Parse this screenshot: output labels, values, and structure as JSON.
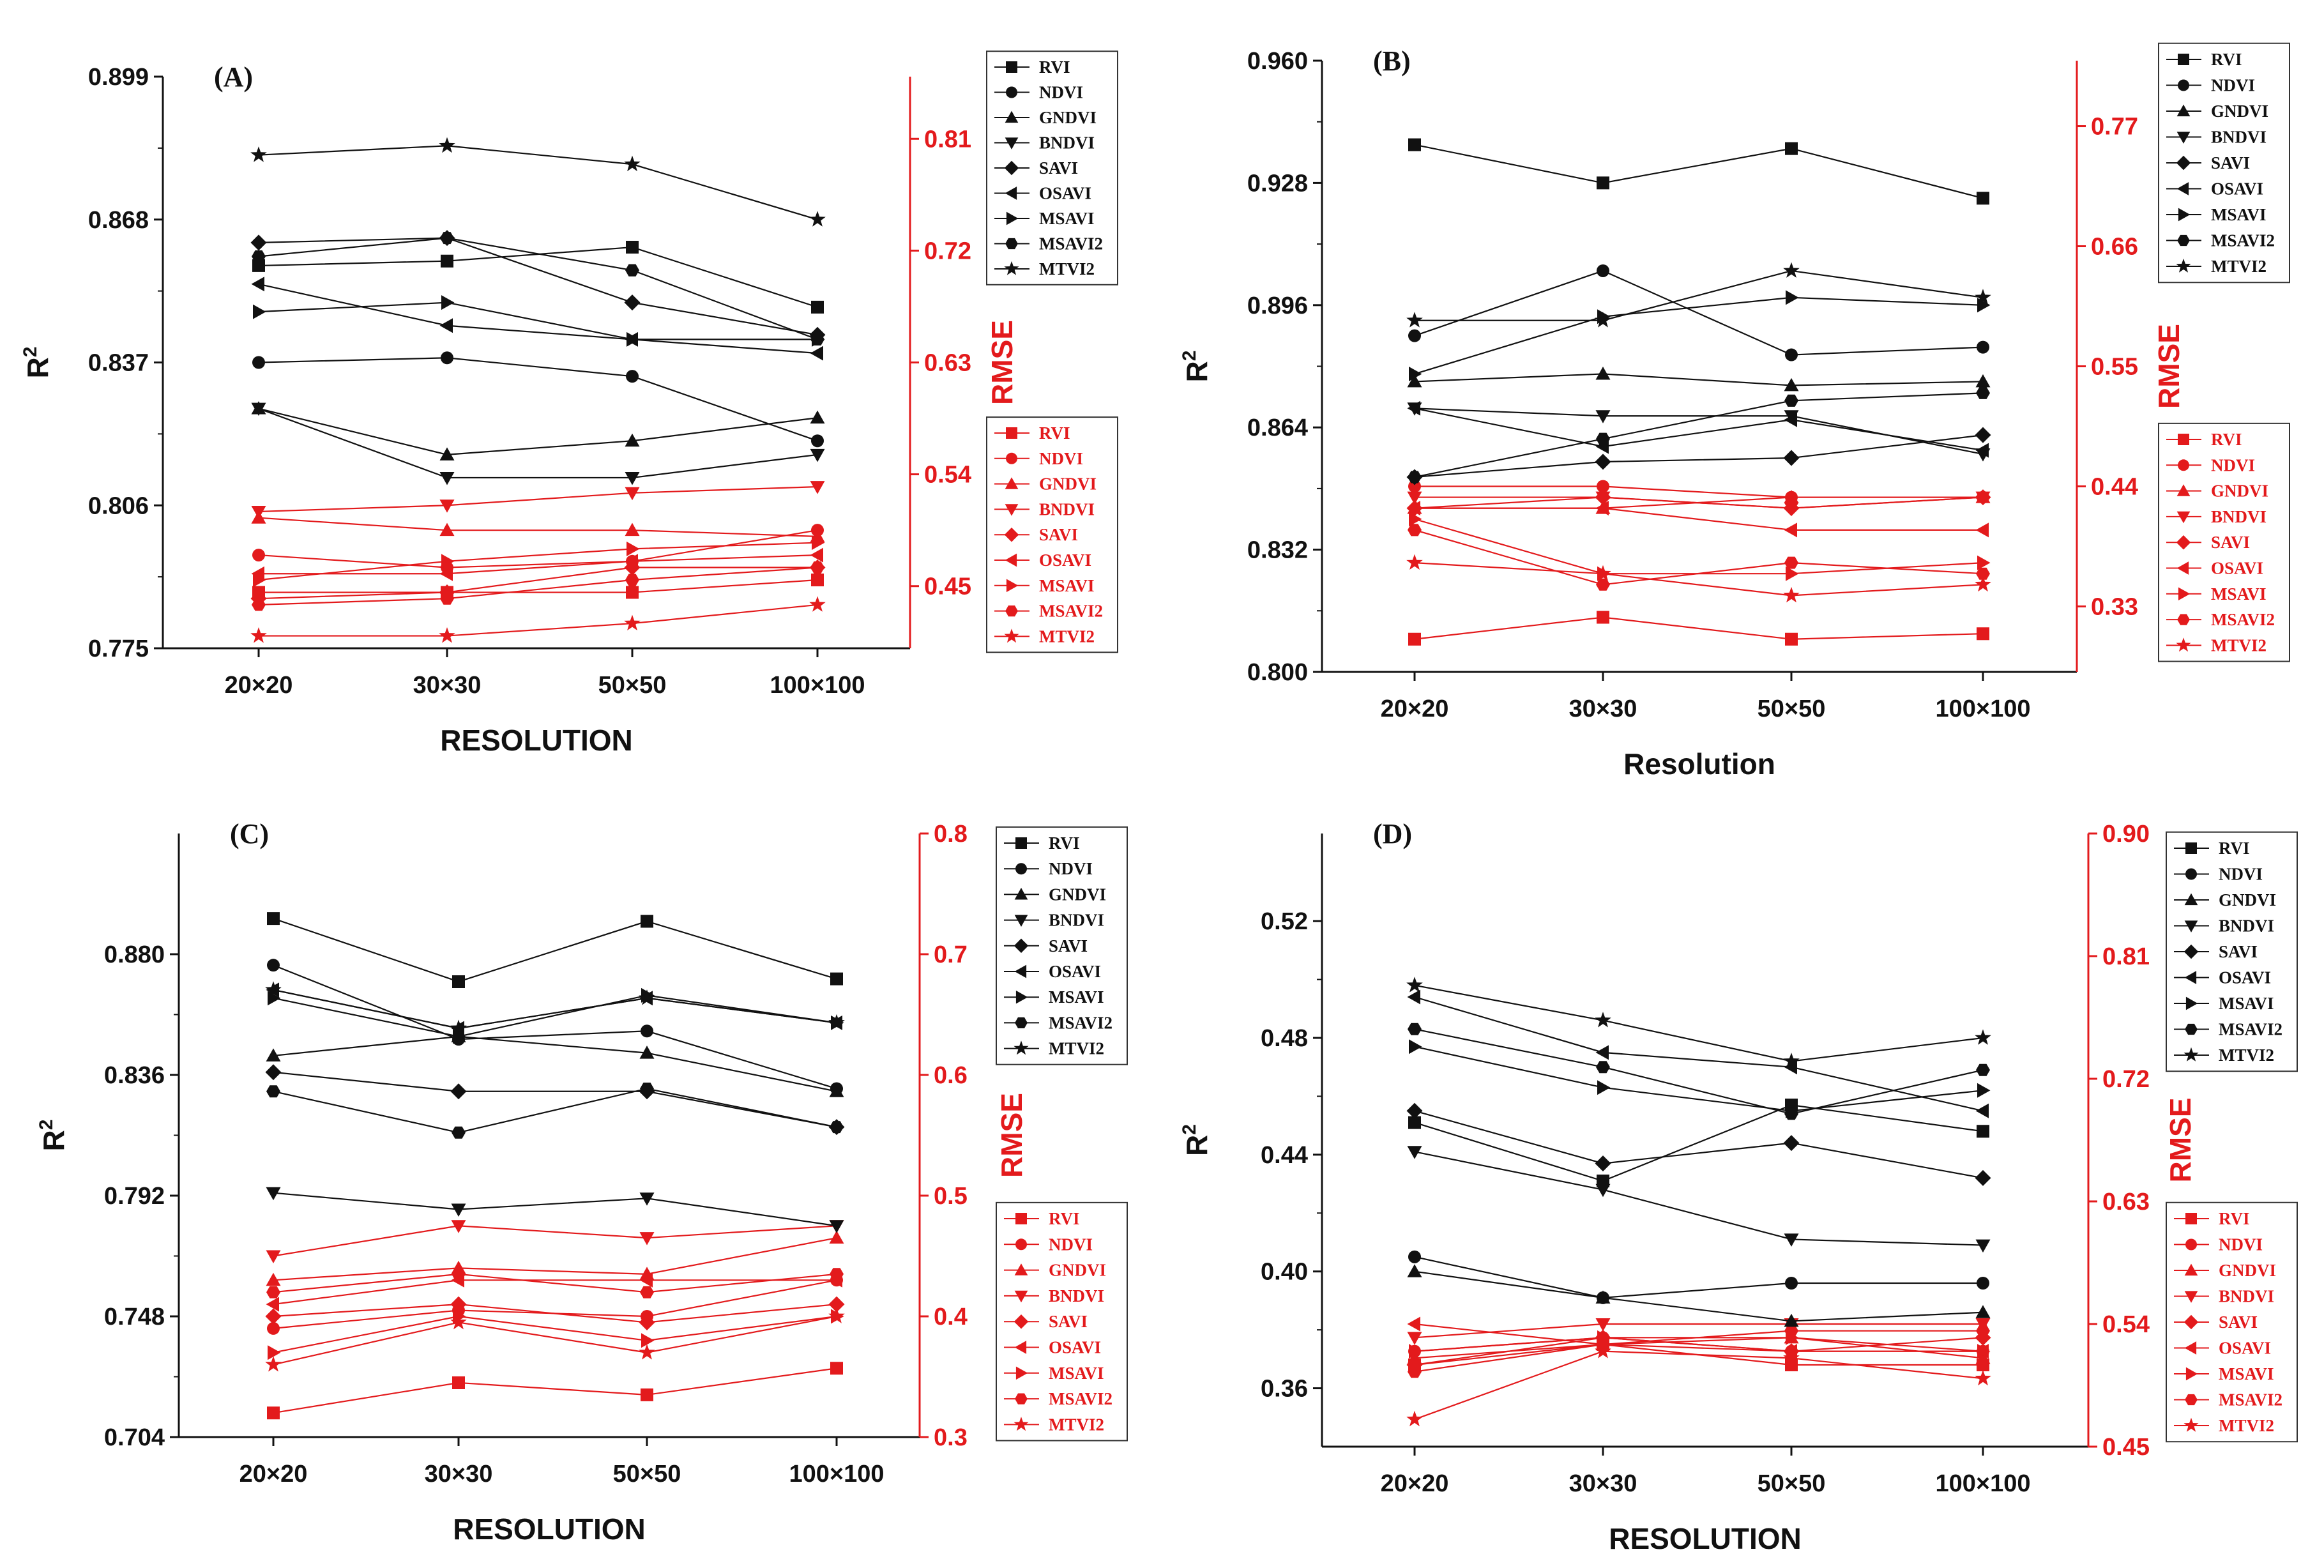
{
  "colors": {
    "r2": "#111111",
    "rmse": "#e31a1c"
  },
  "legend_labels": [
    "RVI",
    "NDVI",
    "GNDVI",
    "BNDVI",
    "SAVI",
    "OSAVI",
    "MSAVI",
    "MSAVI2",
    "MTVI2"
  ],
  "markers": [
    "square",
    "circle",
    "triangle-up",
    "triangle-down",
    "diamond",
    "triangle-left",
    "triangle-right",
    "hexagon",
    "star"
  ],
  "chart_data": [
    {
      "type": "line",
      "panel": "(A)",
      "categories": [
        "20×20",
        "30×30",
        "50×50",
        "100×100"
      ],
      "xlabel": "RESOLUTION",
      "ylabel_left": "R",
      "ylabel_left_sup": "2",
      "ylabel_right": "RMSE",
      "ylim_left": [
        0.775,
        0.899
      ],
      "ylim_right": [
        0.4,
        0.86
      ],
      "yticks_left": [
        "0.775",
        "0.806",
        "0.837",
        "0.868",
        "0.899"
      ],
      "yticks_right": [
        "0.45",
        "0.54",
        "0.63",
        "0.72",
        "0.81"
      ],
      "series_r2": [
        {
          "name": "RVI",
          "values": [
            0.858,
            0.859,
            0.862,
            0.849
          ]
        },
        {
          "name": "NDVI",
          "values": [
            0.837,
            0.838,
            0.834,
            0.82
          ]
        },
        {
          "name": "GNDVI",
          "values": [
            0.827,
            0.817,
            0.82,
            0.825
          ]
        },
        {
          "name": "BNDVI",
          "values": [
            0.827,
            0.812,
            0.812,
            0.817
          ]
        },
        {
          "name": "SAVI",
          "values": [
            0.863,
            0.864,
            0.85,
            0.843
          ]
        },
        {
          "name": "OSAVI",
          "values": [
            0.854,
            0.845,
            0.842,
            0.839
          ]
        },
        {
          "name": "MSAVI",
          "values": [
            0.848,
            0.85,
            0.842,
            0.842
          ]
        },
        {
          "name": "MSAVI2",
          "values": [
            0.86,
            0.864,
            0.857,
            0.842
          ]
        },
        {
          "name": "MTVI2",
          "values": [
            0.882,
            0.884,
            0.88,
            0.868
          ]
        }
      ],
      "series_rmse": [
        {
          "name": "RVI",
          "values": [
            0.445,
            0.445,
            0.445,
            0.455
          ]
        },
        {
          "name": "NDVI",
          "values": [
            0.475,
            0.465,
            0.47,
            0.495
          ]
        },
        {
          "name": "GNDVI",
          "values": [
            0.505,
            0.495,
            0.495,
            0.49
          ]
        },
        {
          "name": "BNDVI",
          "values": [
            0.51,
            0.515,
            0.525,
            0.53
          ]
        },
        {
          "name": "SAVI",
          "values": [
            0.44,
            0.445,
            0.465,
            0.465
          ]
        },
        {
          "name": "OSAVI",
          "values": [
            0.46,
            0.46,
            0.47,
            0.475
          ]
        },
        {
          "name": "MSAVI",
          "values": [
            0.455,
            0.47,
            0.48,
            0.485
          ]
        },
        {
          "name": "MSAVI2",
          "values": [
            0.435,
            0.44,
            0.455,
            0.465
          ]
        },
        {
          "name": "MTVI2",
          "values": [
            0.41,
            0.41,
            0.42,
            0.435
          ]
        }
      ]
    },
    {
      "type": "line",
      "panel": "(B)",
      "categories": [
        "20×20",
        "30×30",
        "50×50",
        "100×100"
      ],
      "xlabel": "Resolution",
      "ylabel_left": "R",
      "ylabel_left_sup": "2",
      "ylabel_right": "RMSE",
      "ylim_left": [
        0.8,
        0.96
      ],
      "ylim_right": [
        0.27,
        0.83
      ],
      "yticks_left": [
        "0.800",
        "0.832",
        "0.864",
        "0.896",
        "0.928",
        "0.960"
      ],
      "yticks_right": [
        "0.33",
        "0.44",
        "0.55",
        "0.66",
        "0.77"
      ],
      "series_r2": [
        {
          "name": "RVI",
          "values": [
            0.938,
            0.928,
            0.937,
            0.924
          ]
        },
        {
          "name": "NDVI",
          "values": [
            0.888,
            0.905,
            0.883,
            0.885
          ]
        },
        {
          "name": "GNDVI",
          "values": [
            0.876,
            0.878,
            0.875,
            0.876
          ]
        },
        {
          "name": "BNDVI",
          "values": [
            0.869,
            0.867,
            0.867,
            0.857
          ]
        },
        {
          "name": "SAVI",
          "values": [
            0.851,
            0.855,
            0.856,
            0.862
          ]
        },
        {
          "name": "OSAVI",
          "values": [
            0.869,
            0.859,
            0.866,
            0.858
          ]
        },
        {
          "name": "MSAVI",
          "values": [
            0.878,
            0.893,
            0.898,
            0.896
          ]
        },
        {
          "name": "MSAVI2",
          "values": [
            0.851,
            0.861,
            0.871,
            0.873
          ]
        },
        {
          "name": "MTVI2",
          "values": [
            0.892,
            0.892,
            0.905,
            0.898
          ]
        }
      ],
      "series_rmse": [
        {
          "name": "RVI",
          "values": [
            0.3,
            0.32,
            0.3,
            0.305
          ]
        },
        {
          "name": "NDVI",
          "values": [
            0.44,
            0.44,
            0.43,
            0.43
          ]
        },
        {
          "name": "GNDVI",
          "values": [
            0.42,
            0.42,
            0.43,
            0.43
          ]
        },
        {
          "name": "BNDVI",
          "values": [
            0.43,
            0.43,
            0.42,
            0.43
          ]
        },
        {
          "name": "SAVI",
          "values": [
            0.42,
            0.43,
            0.42,
            0.43
          ]
        },
        {
          "name": "OSAVI",
          "values": [
            0.42,
            0.42,
            0.4,
            0.4
          ]
        },
        {
          "name": "MSAVI",
          "values": [
            0.41,
            0.36,
            0.36,
            0.37
          ]
        },
        {
          "name": "MSAVI2",
          "values": [
            0.4,
            0.35,
            0.37,
            0.36
          ]
        },
        {
          "name": "MTVI2",
          "values": [
            0.37,
            0.36,
            0.34,
            0.35
          ]
        }
      ]
    },
    {
      "type": "line",
      "panel": "(C)",
      "categories": [
        "20×20",
        "30×30",
        "50×50",
        "100×100"
      ],
      "xlabel": "RESOLUTION",
      "ylabel_left": "R",
      "ylabel_left_sup": "2",
      "ylabel_right": "RMSE",
      "ylim_left": [
        0.704,
        0.924
      ],
      "ylim_right": [
        0.3,
        0.8
      ],
      "yticks_left": [
        "0.704",
        "0.748",
        "0.792",
        "0.836",
        "0.880"
      ],
      "yticks_right": [
        "0.3",
        "0.4",
        "0.5",
        "0.6",
        "0.7",
        "0.8"
      ],
      "series_r2": [
        {
          "name": "RVI",
          "values": [
            0.893,
            0.87,
            0.892,
            0.871
          ]
        },
        {
          "name": "NDVI",
          "values": [
            0.876,
            0.849,
            0.852,
            0.831
          ]
        },
        {
          "name": "GNDVI",
          "values": [
            0.843,
            0.85,
            0.844,
            0.83
          ]
        },
        {
          "name": "BNDVI",
          "values": [
            0.793,
            0.787,
            0.791,
            0.781
          ]
        },
        {
          "name": "SAVI",
          "values": [
            0.837,
            0.83,
            0.83,
            0.817
          ]
        },
        {
          "name": "OSAVI",
          "values": [
            0.867,
            0.853,
            0.864,
            0.855
          ]
        },
        {
          "name": "MSAVI",
          "values": [
            0.864,
            0.85,
            0.865,
            0.855
          ]
        },
        {
          "name": "MSAVI2",
          "values": [
            0.83,
            0.815,
            0.831,
            0.817
          ]
        },
        {
          "name": "MTVI2",
          "values": [
            0.867,
            0.853,
            0.864,
            0.855
          ]
        }
      ],
      "series_rmse": [
        {
          "name": "RVI",
          "values": [
            0.32,
            0.345,
            0.335,
            0.357
          ]
        },
        {
          "name": "NDVI",
          "values": [
            0.39,
            0.405,
            0.4,
            0.43
          ]
        },
        {
          "name": "GNDVI",
          "values": [
            0.43,
            0.44,
            0.435,
            0.465
          ]
        },
        {
          "name": "BNDVI",
          "values": [
            0.45,
            0.475,
            0.465,
            0.475
          ]
        },
        {
          "name": "SAVI",
          "values": [
            0.4,
            0.41,
            0.395,
            0.41
          ]
        },
        {
          "name": "OSAVI",
          "values": [
            0.41,
            0.43,
            0.43,
            0.43
          ]
        },
        {
          "name": "MSAVI",
          "values": [
            0.37,
            0.4,
            0.38,
            0.4
          ]
        },
        {
          "name": "MSAVI2",
          "values": [
            0.42,
            0.435,
            0.42,
            0.435
          ]
        },
        {
          "name": "MTVI2",
          "values": [
            0.36,
            0.395,
            0.37,
            0.4
          ]
        }
      ]
    },
    {
      "type": "line",
      "panel": "(D)",
      "categories": [
        "20×20",
        "30×30",
        "50×50",
        "100×100"
      ],
      "xlabel": "RESOLUTION",
      "ylabel_left": "R",
      "ylabel_left_sup": "2",
      "ylabel_right": "RMSE",
      "ylim_left": [
        0.34,
        0.55
      ],
      "ylim_right": [
        0.45,
        0.9
      ],
      "yticks_left": [
        "0.36",
        "0.40",
        "0.44",
        "0.48",
        "0.52"
      ],
      "yticks_right": [
        "0.45",
        "0.54",
        "0.63",
        "0.72",
        "0.81",
        "0.90"
      ],
      "series_r2": [
        {
          "name": "RVI",
          "values": [
            0.451,
            0.431,
            0.457,
            0.448
          ]
        },
        {
          "name": "NDVI",
          "values": [
            0.405,
            0.391,
            0.396,
            0.396
          ]
        },
        {
          "name": "GNDVI",
          "values": [
            0.4,
            0.391,
            0.383,
            0.386
          ]
        },
        {
          "name": "BNDVI",
          "values": [
            0.441,
            0.428,
            0.411,
            0.409
          ]
        },
        {
          "name": "SAVI",
          "values": [
            0.455,
            0.437,
            0.444,
            0.432
          ]
        },
        {
          "name": "OSAVI",
          "values": [
            0.494,
            0.475,
            0.47,
            0.455
          ]
        },
        {
          "name": "MSAVI",
          "values": [
            0.477,
            0.463,
            0.455,
            0.462
          ]
        },
        {
          "name": "MSAVI2",
          "values": [
            0.483,
            0.47,
            0.454,
            0.469
          ]
        },
        {
          "name": "MTVI2",
          "values": [
            0.498,
            0.486,
            0.472,
            0.48
          ]
        }
      ],
      "series_rmse": [
        {
          "name": "RVI",
          "values": [
            0.51,
            0.525,
            0.51,
            0.51
          ]
        },
        {
          "name": "NDVI",
          "values": [
            0.52,
            0.53,
            0.52,
            0.52
          ]
        },
        {
          "name": "GNDVI",
          "values": [
            0.515,
            0.525,
            0.53,
            0.515
          ]
        },
        {
          "name": "BNDVI",
          "values": [
            0.53,
            0.54,
            0.54,
            0.54
          ]
        },
        {
          "name": "SAVI",
          "values": [
            0.51,
            0.53,
            0.52,
            0.53
          ]
        },
        {
          "name": "OSAVI",
          "values": [
            0.54,
            0.525,
            0.52,
            0.52
          ]
        },
        {
          "name": "MSAVI",
          "values": [
            0.52,
            0.53,
            0.53,
            0.52
          ]
        },
        {
          "name": "MSAVI2",
          "values": [
            0.505,
            0.525,
            0.535,
            0.535
          ]
        },
        {
          "name": "MTVI2",
          "values": [
            0.47,
            0.52,
            0.515,
            0.5
          ]
        }
      ]
    }
  ]
}
